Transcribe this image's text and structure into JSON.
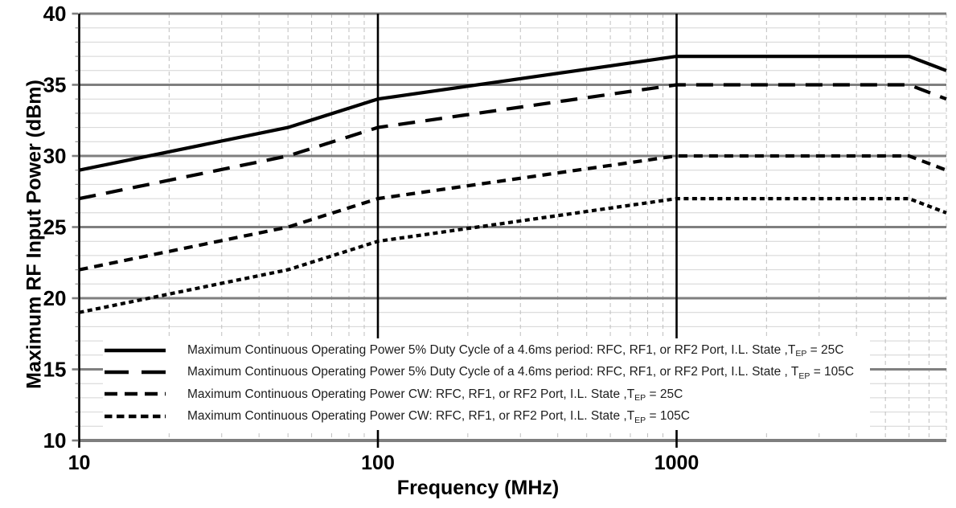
{
  "chart_data": {
    "type": "line",
    "title": "",
    "xlabel": "Frequency (MHz)",
    "ylabel": "Maximum RF Input Power (dBm)",
    "x_scale": "log",
    "xlim": [
      10,
      8000
    ],
    "ylim": [
      10,
      40
    ],
    "grid": true,
    "legend_position": "inside bottom-left",
    "x_major_ticks": [
      10,
      100,
      1000
    ],
    "x_major_tick_labels": [
      "10",
      "100",
      "1000"
    ],
    "y_major_ticks": [
      10,
      15,
      20,
      25,
      30,
      35,
      40
    ],
    "y_major_tick_labels": [
      "10",
      "15",
      "20",
      "25",
      "30",
      "35",
      "40"
    ],
    "y_minor_step": 1,
    "colors": {
      "series": "#000000",
      "grid_major": "#7f7f7f",
      "grid_minor_h": "#d4d4d4",
      "grid_minor_v": "#bfbfbf",
      "axis": "#000000",
      "text": "#000000",
      "legend_text": "#1d1d1d",
      "background": "#ffffff"
    },
    "series": [
      {
        "name": "duty-cycle-5pct-tep-25c",
        "dash": "",
        "legend_dash": "",
        "points": [
          [
            10,
            29
          ],
          [
            50,
            32
          ],
          [
            100,
            34
          ],
          [
            1000,
            37
          ],
          [
            6000,
            37
          ],
          [
            8000,
            36
          ]
        ],
        "label_parts": [
          {
            "t": "Maximum Continuous Operating Power 5% Duty Cycle of a 4.6ms period: RFC, RF1, or RF2 Port, I.L. State ,T"
          },
          {
            "t": "EP",
            "sub": true
          },
          {
            "t": " = 25C"
          }
        ]
      },
      {
        "name": "duty-cycle-5pct-tep-105c",
        "dash": "21 13",
        "legend_dash": "30 16",
        "points": [
          [
            10,
            27
          ],
          [
            50,
            30
          ],
          [
            100,
            32
          ],
          [
            1000,
            35
          ],
          [
            6000,
            35
          ],
          [
            8000,
            34
          ]
        ],
        "label_parts": [
          {
            "t": "Maximum Continuous Operating Power 5% Duty Cycle of a 4.6ms period: RFC, RF1, or RF2 Port, I.L. State , T"
          },
          {
            "t": "EP",
            "sub": true
          },
          {
            "t": " = 105C"
          }
        ]
      },
      {
        "name": "cw-tep-25c",
        "dash": "11 8",
        "legend_dash": "16 9",
        "points": [
          [
            10,
            22
          ],
          [
            50,
            25
          ],
          [
            100,
            27
          ],
          [
            1000,
            30
          ],
          [
            6000,
            30
          ],
          [
            8000,
            29
          ]
        ],
        "label_parts": [
          {
            "t": "Maximum Continuous Operating Power CW: RFC, RF1, or RF2 Port, I.L. State ,T"
          },
          {
            "t": "EP",
            "sub": true
          },
          {
            "t": " = 25C"
          }
        ]
      },
      {
        "name": "cw-tep-105c",
        "dash": "6 4.5",
        "legend_dash": "9.5 5.5",
        "points": [
          [
            10,
            19
          ],
          [
            50,
            22
          ],
          [
            100,
            24
          ],
          [
            1000,
            27
          ],
          [
            6000,
            27
          ],
          [
            8000,
            26
          ]
        ],
        "label_parts": [
          {
            "t": "Maximum Continuous Operating Power CW: RFC, RF1, or RF2 Port, I.L. State ,T"
          },
          {
            "t": "EP",
            "sub": true
          },
          {
            "t": " = 105C"
          }
        ]
      }
    ]
  }
}
